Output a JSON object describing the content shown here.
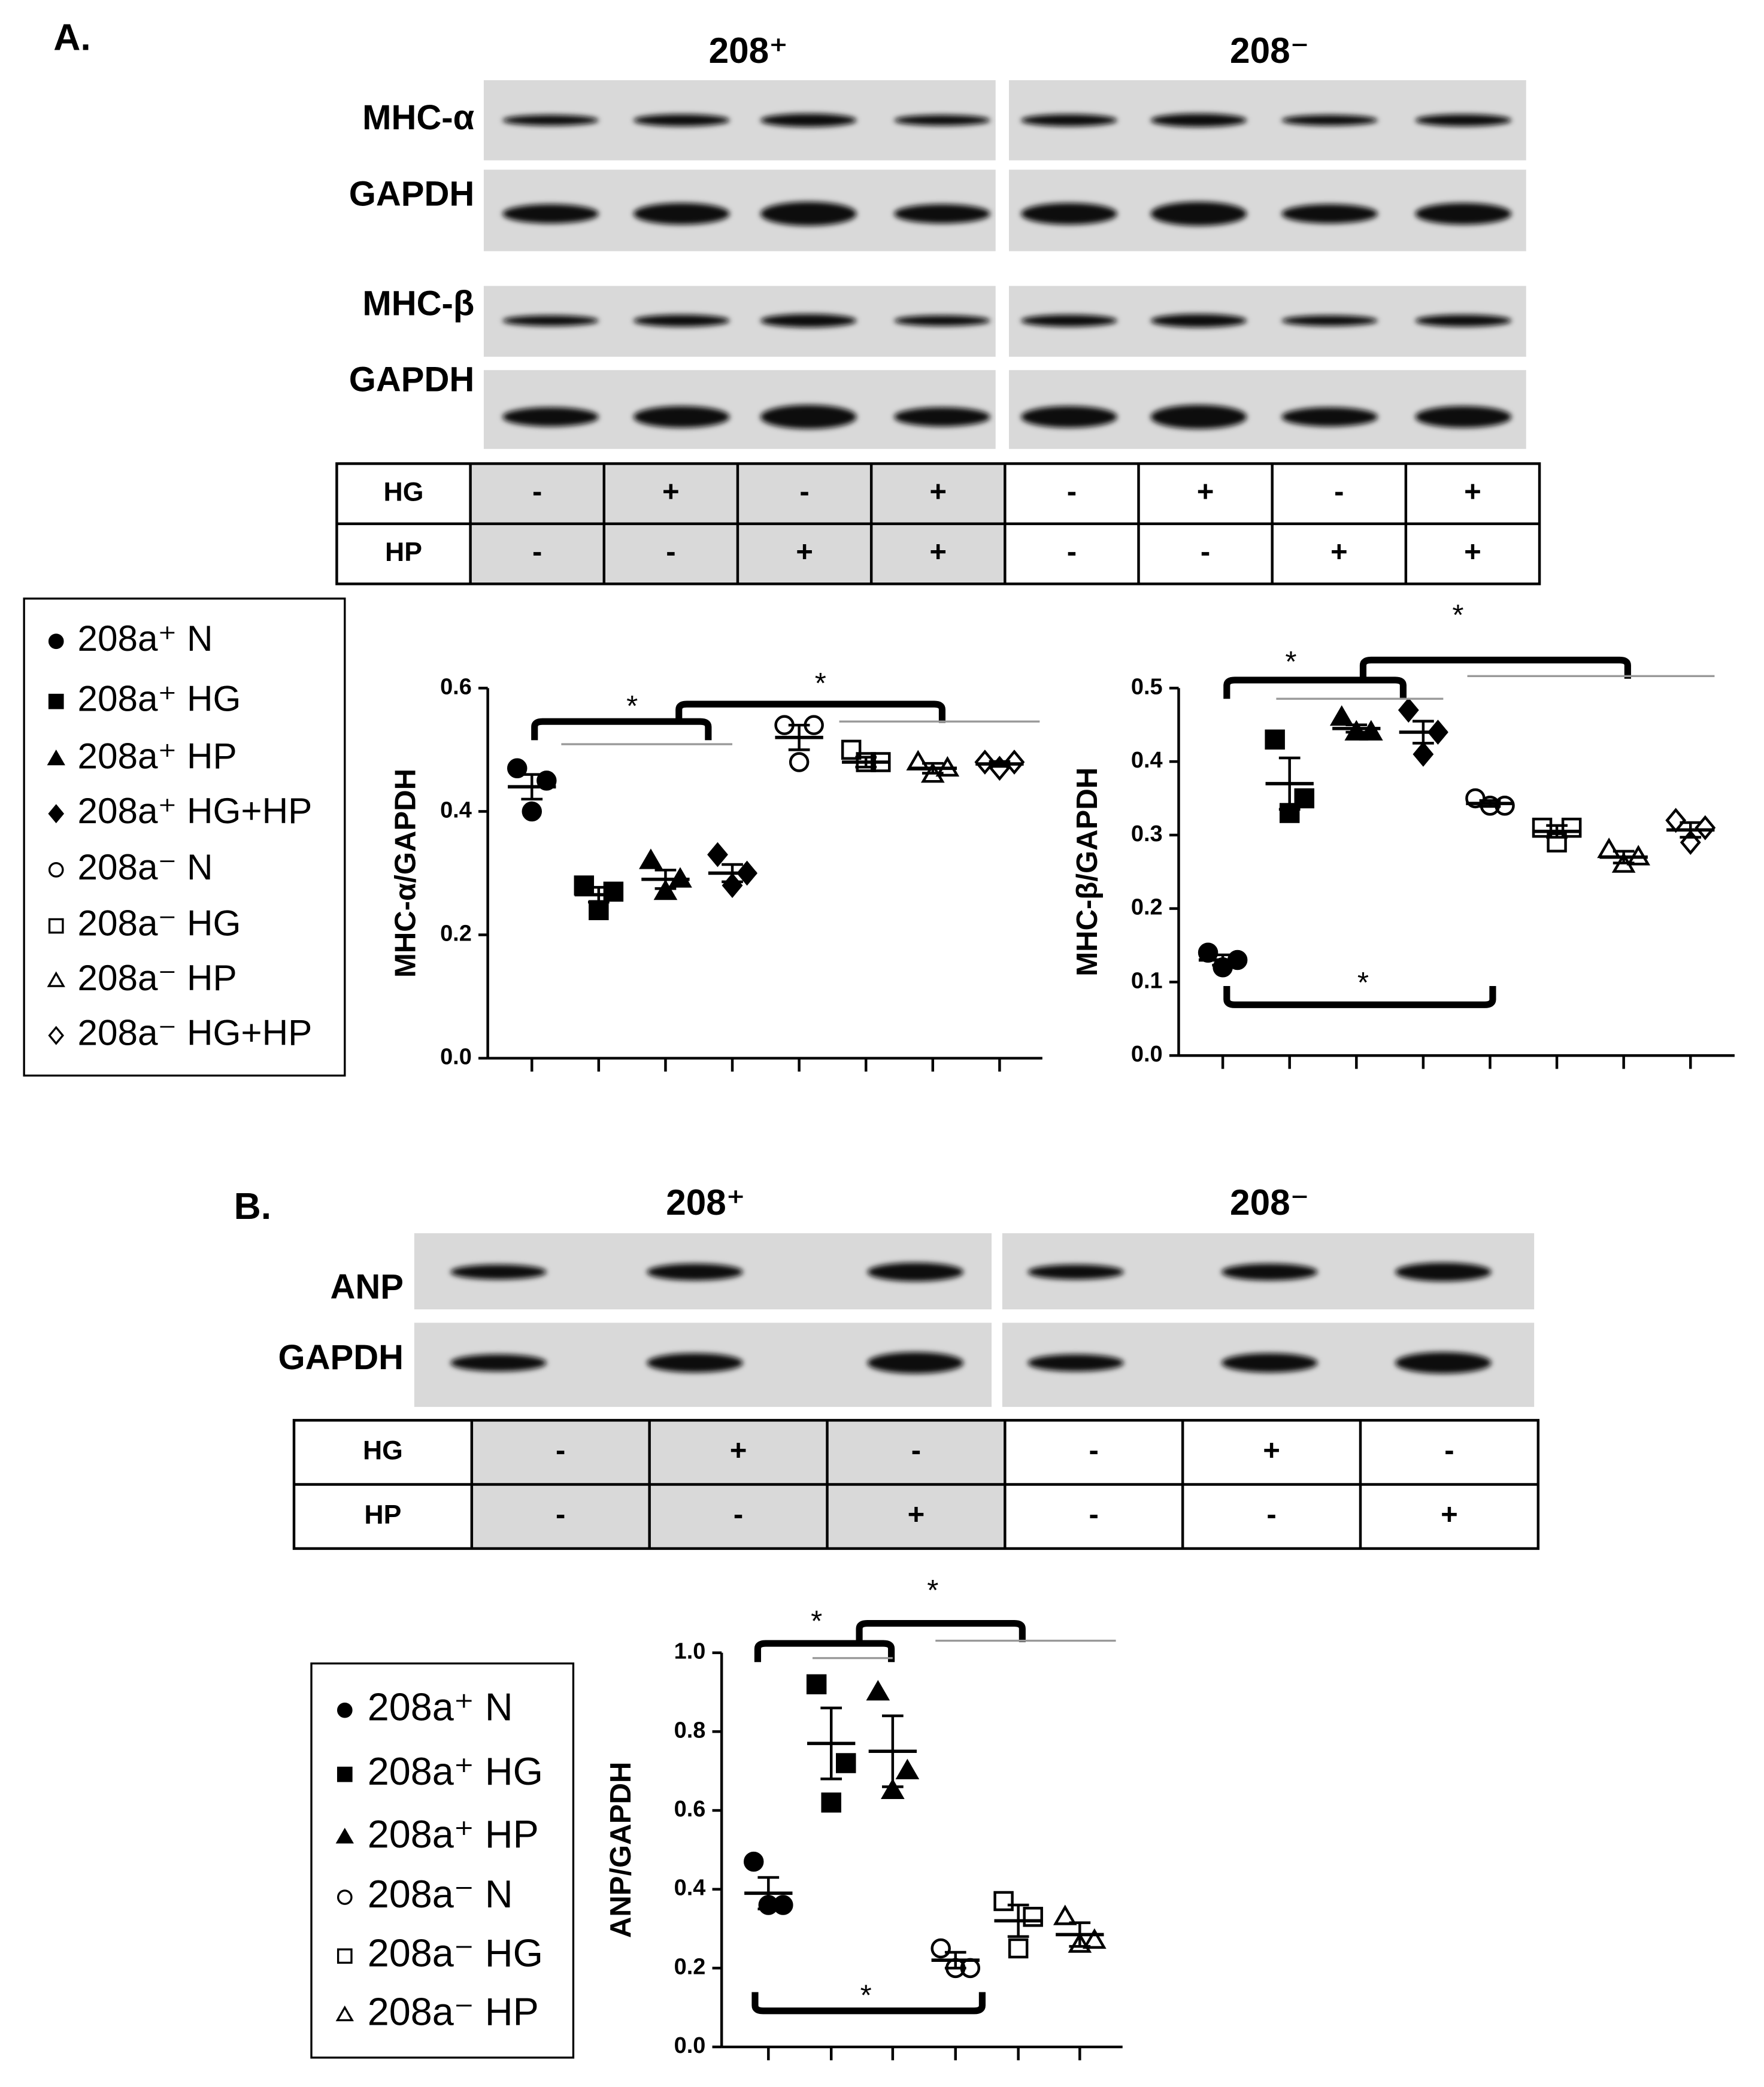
{
  "panel_a": {
    "label": "A.",
    "groups": [
      "208⁺",
      "208⁻"
    ],
    "blot_rows": [
      "MHC-α",
      "GAPDH",
      "MHC-β",
      "GAPDH"
    ],
    "conditions": [
      {
        "name": "HG",
        "values": [
          "-",
          "+",
          "-",
          "+",
          "-",
          "+",
          "-",
          "+"
        ]
      },
      {
        "name": "HP",
        "values": [
          "-",
          "-",
          "+",
          "+",
          "-",
          "-",
          "+",
          "+"
        ]
      }
    ]
  },
  "panel_b": {
    "label": "B.",
    "groups": [
      "208⁺",
      "208⁻"
    ],
    "blot_rows": [
      "ANP",
      "GAPDH"
    ],
    "conditions": [
      {
        "name": "HG",
        "values": [
          "-",
          "+",
          "-",
          "-",
          "+",
          "-"
        ]
      },
      {
        "name": "HP",
        "values": [
          "-",
          "-",
          "+",
          "-",
          "-",
          "+"
        ]
      }
    ]
  },
  "chart_data": [
    {
      "type": "dot",
      "ylabel": "MHC-α/GAPDH",
      "ylim": [
        0,
        0.6
      ],
      "yticks": [
        {
          "value": 0,
          "label": "0.0"
        },
        0.2,
        0.4,
        0.6
      ],
      "annotations": [
        "*",
        "*"
      ],
      "series": [
        {
          "name": "208a⁺ N",
          "color": "#000000",
          "marker": "circle",
          "fill": "#000000",
          "values": [
            0.47,
            0.45,
            0.4
          ],
          "mean": 0.44,
          "sem": 0.02
        },
        {
          "name": "208a⁺ HG",
          "color": "#000000",
          "marker": "square",
          "fill": "#000000",
          "values": [
            0.28,
            0.27,
            0.24
          ],
          "mean": 0.265,
          "sem": 0.012
        },
        {
          "name": "208a⁺ HP",
          "color": "#000000",
          "marker": "triangle",
          "fill": "#000000",
          "values": [
            0.32,
            0.29,
            0.27
          ],
          "mean": 0.29,
          "sem": 0.015
        },
        {
          "name": "208a⁺ HG+HP",
          "color": "#000000",
          "marker": "diamond",
          "fill": "#000000",
          "values": [
            0.33,
            0.3,
            0.28
          ],
          "mean": 0.3,
          "sem": 0.014
        },
        {
          "name": "208a⁻ N",
          "color": "#000000",
          "marker": "circle",
          "fill": "none",
          "values": [
            0.54,
            0.54,
            0.48
          ],
          "mean": 0.52,
          "sem": 0.02
        },
        {
          "name": "208a⁻ HG",
          "color": "#000000",
          "marker": "square",
          "fill": "none",
          "values": [
            0.5,
            0.48,
            0.48
          ],
          "mean": 0.48,
          "sem": 0.008
        },
        {
          "name": "208a⁻ HP",
          "color": "#000000",
          "marker": "triangle",
          "fill": "none",
          "values": [
            0.48,
            0.47,
            0.46
          ],
          "mean": 0.47,
          "sem": 0.008
        },
        {
          "name": "208a⁻ HG+HP",
          "color": "#000000",
          "marker": "diamond",
          "fill": "none",
          "values": [
            0.48,
            0.48,
            0.47
          ],
          "mean": 0.477,
          "sem": 0.004
        }
      ]
    },
    {
      "type": "dot",
      "ylabel": "MHC-β/GAPDH",
      "ylim": [
        0,
        0.5
      ],
      "yticks": [
        {
          "value": 0,
          "label": "0.0"
        },
        0.1,
        0.2,
        0.3,
        0.4,
        0.5
      ],
      "annotations": [
        "*",
        "*",
        "*"
      ],
      "series": [
        {
          "color": "#000000",
          "marker": "circle",
          "fill": "#000000",
          "values": [
            0.14,
            0.13,
            0.12
          ],
          "mean": 0.13,
          "sem": 0.007
        },
        {
          "color": "#000000",
          "marker": "square",
          "fill": "#000000",
          "values": [
            0.43,
            0.35,
            0.33
          ],
          "mean": 0.37,
          "sem": 0.035
        },
        {
          "color": "#000000",
          "marker": "triangle",
          "fill": "#000000",
          "values": [
            0.46,
            0.44,
            0.44
          ],
          "mean": 0.445,
          "sem": 0.005
        },
        {
          "color": "#000000",
          "marker": "diamond",
          "fill": "#000000",
          "values": [
            0.47,
            0.44,
            0.41
          ],
          "mean": 0.44,
          "sem": 0.015
        },
        {
          "color": "#000000",
          "marker": "circle",
          "fill": "none",
          "values": [
            0.35,
            0.34,
            0.34
          ],
          "mean": 0.343,
          "sem": 0.004
        },
        {
          "color": "#000000",
          "marker": "square",
          "fill": "none",
          "values": [
            0.31,
            0.31,
            0.29
          ],
          "mean": 0.305,
          "sem": 0.008
        },
        {
          "color": "#000000",
          "marker": "triangle",
          "fill": "none",
          "values": [
            0.28,
            0.27,
            0.26
          ],
          "mean": 0.27,
          "sem": 0.008
        },
        {
          "color": "#000000",
          "marker": "diamond",
          "fill": "none",
          "values": [
            0.32,
            0.31,
            0.29
          ],
          "mean": 0.307,
          "sem": 0.01
        }
      ]
    },
    {
      "type": "dot",
      "ylabel": "ANP/GAPDH",
      "ylim": [
        0,
        1
      ],
      "yticks": [
        {
          "value": 0,
          "label": "0.0"
        },
        0.2,
        0.4,
        0.6,
        0.8,
        {
          "value": 1,
          "label": "1.0"
        }
      ],
      "annotations": [
        "*",
        "*",
        "*"
      ],
      "series": [
        {
          "name": "208a⁺ N",
          "color": "#000000",
          "marker": "circle",
          "fill": "#000000",
          "values": [
            0.47,
            0.36,
            0.36
          ],
          "mean": 0.39,
          "sem": 0.04
        },
        {
          "name": "208a⁺ HG",
          "color": "#000000",
          "marker": "square",
          "fill": "#000000",
          "values": [
            0.92,
            0.72,
            0.62
          ],
          "mean": 0.77,
          "sem": 0.09
        },
        {
          "name": "208a⁺ HP",
          "color": "#000000",
          "marker": "triangle",
          "fill": "#000000",
          "values": [
            0.9,
            0.7,
            0.65
          ],
          "mean": 0.75,
          "sem": 0.09
        },
        {
          "name": "208a⁻ N",
          "color": "#000000",
          "marker": "circle",
          "fill": "none",
          "values": [
            0.25,
            0.2,
            0.2
          ],
          "mean": 0.22,
          "sem": 0.02
        },
        {
          "name": "208a⁻ HG",
          "color": "#000000",
          "marker": "square",
          "fill": "none",
          "values": [
            0.37,
            0.33,
            0.25
          ],
          "mean": 0.32,
          "sem": 0.04
        },
        {
          "name": "208a⁻ HP",
          "color": "#000000",
          "marker": "triangle",
          "fill": "none",
          "values": [
            0.33,
            0.27,
            0.26
          ],
          "mean": 0.285,
          "sem": 0.03
        }
      ]
    }
  ]
}
